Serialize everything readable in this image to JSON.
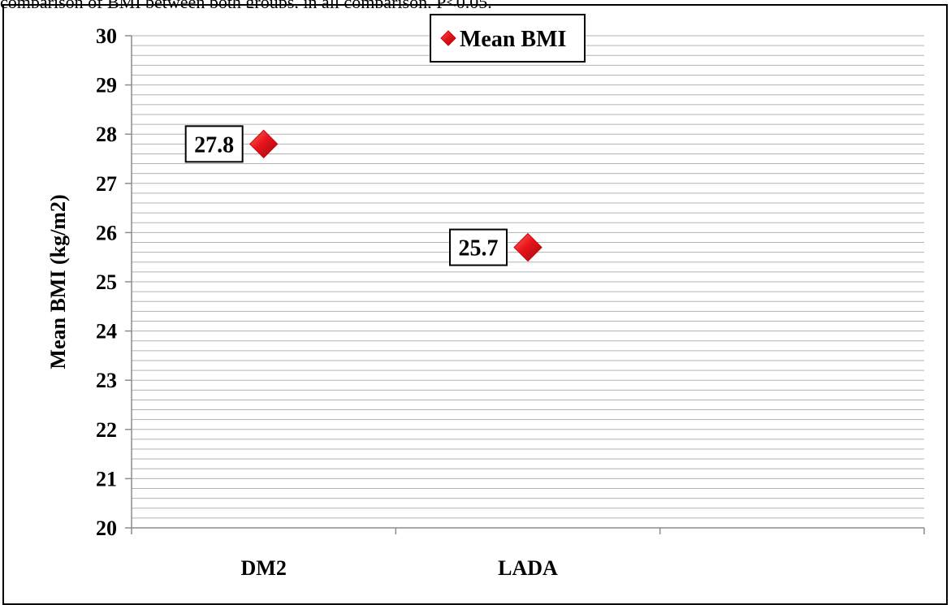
{
  "page": {
    "caption_fragment": "comparison of BMI between both groups, in all comparison, P<0.05."
  },
  "chart_data": {
    "type": "scatter",
    "categories": [
      "DM2",
      "LADA"
    ],
    "series": [
      {
        "name": "Mean BMI",
        "values": [
          27.8,
          25.7
        ],
        "labels": [
          "27.8",
          "25.7"
        ],
        "color": "#e8141b",
        "marker": "diamond"
      }
    ],
    "ylabel": "Mean BMI (kg/m2)",
    "xlabel": "",
    "ylim": [
      20,
      30
    ],
    "yticks": [
      20,
      21,
      22,
      23,
      24,
      25,
      26,
      27,
      28,
      29,
      30
    ],
    "minor_grid_step": 0.2,
    "grid": true,
    "legend": "top-center"
  }
}
